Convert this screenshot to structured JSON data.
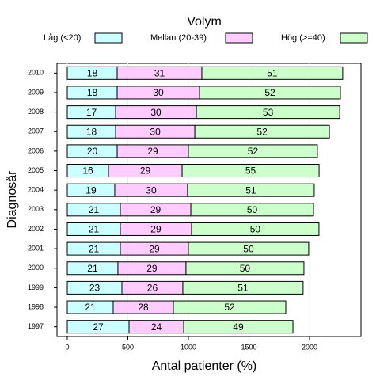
{
  "chart_data": {
    "type": "stacked-barh",
    "legend_title": "Volym",
    "xlabel": "Antal patienter (%)",
    "ylabel": "Diagnosår",
    "categories": [
      "1997",
      "1998",
      "1999",
      "2000",
      "2001",
      "2002",
      "2003",
      "2004",
      "2005",
      "2006",
      "2007",
      "2008",
      "2009",
      "2010"
    ],
    "series": [
      {
        "name": "Låg (<20)",
        "color": "#ccffff",
        "values": [
          510,
          379,
          451,
          418,
          438,
          438,
          438,
          392,
          340,
          412,
          399,
          399,
          412,
          412
        ],
        "percent": [
          27,
          21,
          23,
          21,
          21,
          21,
          21,
          19,
          16,
          20,
          18,
          17,
          18,
          18
        ]
      },
      {
        "name": "Mellan (20-39)",
        "color": "#ffccff",
        "values": [
          451,
          497,
          503,
          562,
          562,
          588,
          582,
          601,
          608,
          588,
          654,
          667,
          680,
          699
        ],
        "percent": [
          24,
          28,
          26,
          29,
          29,
          29,
          29,
          30,
          29,
          29,
          30,
          30,
          30,
          31
        ]
      },
      {
        "name": "Hög (>=40)",
        "color": "#ccffcc",
        "values": [
          902,
          928,
          993,
          974,
          993,
          1052,
          1013,
          1046,
          1131,
          1065,
          1111,
          1183,
          1163,
          1163
        ],
        "percent": [
          49,
          52,
          51,
          50,
          50,
          50,
          50,
          51,
          55,
          52,
          52,
          53,
          52,
          51
        ]
      }
    ],
    "xlim": [
      -85,
      2425
    ],
    "xticks": [
      0,
      500,
      1000,
      1500,
      2000
    ],
    "grid": true
  }
}
